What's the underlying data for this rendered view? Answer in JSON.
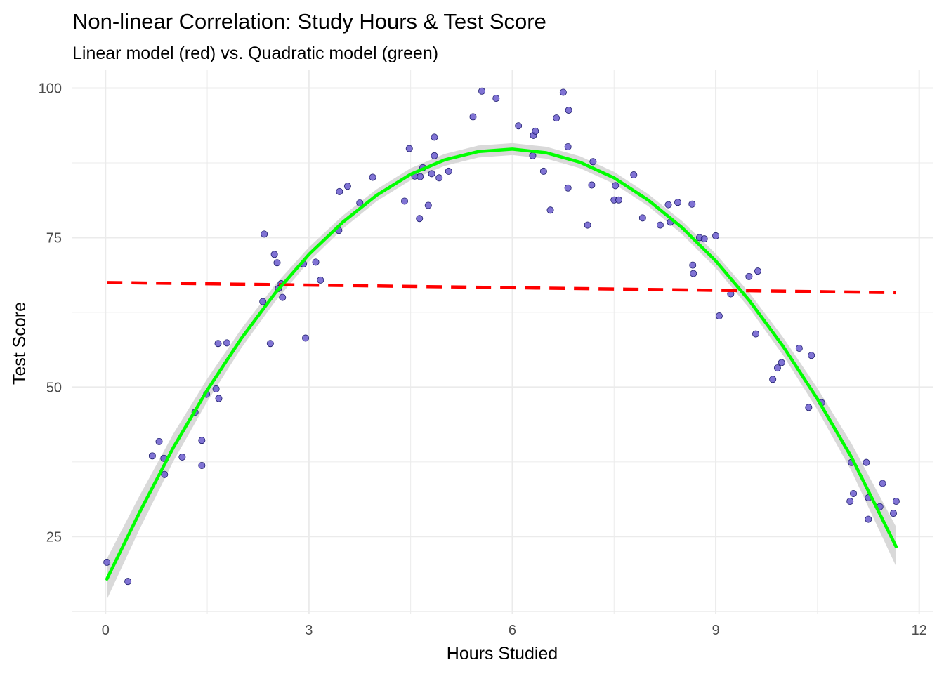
{
  "chart_data": {
    "type": "scatter",
    "title": "Non-linear Correlation: Study Hours & Test Score",
    "subtitle": "Linear model (red) vs. Quadratic model (green)",
    "xlabel": "Hours Studied",
    "ylabel": "Test Score",
    "xlim": [
      -0.5,
      12.2
    ],
    "ylim": [
      12,
      103
    ],
    "x_ticks": [
      0,
      3,
      6,
      9,
      12
    ],
    "y_ticks": [
      25,
      50,
      75,
      100
    ],
    "grid": true,
    "legend": "none",
    "colors": {
      "points": "#6a5acd",
      "points_edge": "#1f1f6e",
      "linear": "#ff0000",
      "quadratic": "#00ff00",
      "confidence_band": "#d9d9d9",
      "grid": "#ebebeb"
    },
    "points": [
      [
        0.02,
        20.7
      ],
      [
        0.33,
        17.5
      ],
      [
        0.69,
        38.5
      ],
      [
        0.79,
        40.9
      ],
      [
        0.86,
        38.1
      ],
      [
        0.87,
        35.4
      ],
      [
        1.13,
        38.3
      ],
      [
        1.32,
        45.8
      ],
      [
        1.42,
        41.1
      ],
      [
        1.42,
        36.9
      ],
      [
        1.49,
        48.8
      ],
      [
        1.63,
        49.7
      ],
      [
        1.66,
        57.3
      ],
      [
        1.67,
        48.1
      ],
      [
        1.79,
        57.4
      ],
      [
        2.32,
        64.3
      ],
      [
        2.34,
        75.6
      ],
      [
        2.43,
        57.3
      ],
      [
        2.49,
        72.2
      ],
      [
        2.53,
        70.8
      ],
      [
        2.55,
        66.5
      ],
      [
        2.59,
        67.3
      ],
      [
        2.61,
        65.0
      ],
      [
        2.92,
        70.6
      ],
      [
        2.95,
        58.2
      ],
      [
        3.1,
        70.9
      ],
      [
        3.17,
        67.9
      ],
      [
        3.44,
        76.2
      ],
      [
        3.45,
        82.7
      ],
      [
        3.57,
        83.6
      ],
      [
        3.75,
        80.8
      ],
      [
        3.94,
        85.1
      ],
      [
        4.41,
        81.1
      ],
      [
        4.48,
        89.9
      ],
      [
        4.56,
        85.3
      ],
      [
        4.63,
        78.2
      ],
      [
        4.64,
        85.2
      ],
      [
        4.68,
        86.7
      ],
      [
        4.76,
        80.4
      ],
      [
        4.81,
        85.7
      ],
      [
        4.85,
        88.7
      ],
      [
        4.85,
        91.8
      ],
      [
        4.92,
        85.0
      ],
      [
        5.06,
        86.1
      ],
      [
        5.42,
        95.2
      ],
      [
        5.55,
        99.5
      ],
      [
        5.76,
        98.3
      ],
      [
        6.09,
        93.7
      ],
      [
        6.3,
        88.7
      ],
      [
        6.31,
        92.1
      ],
      [
        6.34,
        92.8
      ],
      [
        6.46,
        86.1
      ],
      [
        6.56,
        79.6
      ],
      [
        6.65,
        95.0
      ],
      [
        6.75,
        99.3
      ],
      [
        6.82,
        90.2
      ],
      [
        6.82,
        83.3
      ],
      [
        6.83,
        96.3
      ],
      [
        7.11,
        77.1
      ],
      [
        7.17,
        83.8
      ],
      [
        7.19,
        87.7
      ],
      [
        7.5,
        81.3
      ],
      [
        7.52,
        83.7
      ],
      [
        7.57,
        81.3
      ],
      [
        7.79,
        85.5
      ],
      [
        7.92,
        78.3
      ],
      [
        8.18,
        77.1
      ],
      [
        8.3,
        80.5
      ],
      [
        8.33,
        77.6
      ],
      [
        8.44,
        80.9
      ],
      [
        8.65,
        80.6
      ],
      [
        8.66,
        70.4
      ],
      [
        8.67,
        69.0
      ],
      [
        8.76,
        75.0
      ],
      [
        8.83,
        74.8
      ],
      [
        9.0,
        75.3
      ],
      [
        9.05,
        61.9
      ],
      [
        9.22,
        65.6
      ],
      [
        9.49,
        68.5
      ],
      [
        9.59,
        58.9
      ],
      [
        9.62,
        69.4
      ],
      [
        9.84,
        51.3
      ],
      [
        9.91,
        53.2
      ],
      [
        9.97,
        54.1
      ],
      [
        10.23,
        56.5
      ],
      [
        10.37,
        46.6
      ],
      [
        10.41,
        55.3
      ],
      [
        10.56,
        47.4
      ],
      [
        10.98,
        30.9
      ],
      [
        11.0,
        37.4
      ],
      [
        11.03,
        32.2
      ],
      [
        11.22,
        37.4
      ],
      [
        11.25,
        31.5
      ],
      [
        11.25,
        27.9
      ],
      [
        11.42,
        30.0
      ],
      [
        11.46,
        33.9
      ],
      [
        11.62,
        28.9
      ],
      [
        11.66,
        30.9
      ]
    ],
    "linear_fit": {
      "x": [
        0.02,
        11.66
      ],
      "y": [
        67.5,
        65.8
      ],
      "style": "dashed"
    },
    "quadratic_fit": {
      "x": [
        0.02,
        0.5,
        1.0,
        1.5,
        2.0,
        2.5,
        3.0,
        3.5,
        4.0,
        4.5,
        5.0,
        5.5,
        6.0,
        6.5,
        7.0,
        7.5,
        8.0,
        8.5,
        9.0,
        9.5,
        10.0,
        10.5,
        11.0,
        11.66
      ],
      "y": [
        17.9,
        29.0,
        39.9,
        49.5,
        58.1,
        65.7,
        72.2,
        77.6,
        82.1,
        85.6,
        88.0,
        89.4,
        89.8,
        89.2,
        87.6,
        85.0,
        81.3,
        76.7,
        71.1,
        64.4,
        56.7,
        48.0,
        38.3,
        23.3
      ],
      "band_halfwidth": [
        3.4,
        2.8,
        2.3,
        1.9,
        1.6,
        1.4,
        1.2,
        1.1,
        1.0,
        1.0,
        1.0,
        1.0,
        1.0,
        1.0,
        1.0,
        1.0,
        1.0,
        1.1,
        1.2,
        1.3,
        1.5,
        1.8,
        2.3,
        3.3
      ]
    }
  }
}
